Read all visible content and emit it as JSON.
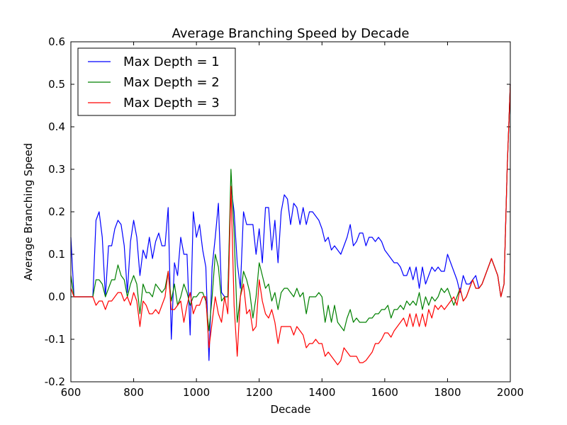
{
  "chart_data": {
    "type": "line",
    "title": "Average Branching Speed by Decade",
    "x_label": "Decade",
    "y_label": "Average Branching Speed",
    "x": [
      600,
      610,
      620,
      630,
      640,
      650,
      660,
      670,
      680,
      690,
      700,
      710,
      720,
      730,
      740,
      750,
      760,
      770,
      780,
      790,
      800,
      810,
      820,
      830,
      840,
      850,
      860,
      870,
      880,
      890,
      900,
      910,
      920,
      930,
      940,
      950,
      960,
      970,
      980,
      990,
      1000,
      1010,
      1020,
      1030,
      1040,
      1050,
      1060,
      1070,
      1080,
      1090,
      1100,
      1110,
      1120,
      1130,
      1140,
      1150,
      1160,
      1170,
      1180,
      1190,
      1200,
      1210,
      1220,
      1230,
      1240,
      1250,
      1260,
      1270,
      1280,
      1290,
      1300,
      1310,
      1320,
      1330,
      1340,
      1350,
      1360,
      1370,
      1380,
      1390,
      1400,
      1410,
      1420,
      1430,
      1440,
      1450,
      1460,
      1470,
      1480,
      1490,
      1500,
      1510,
      1520,
      1530,
      1540,
      1550,
      1560,
      1570,
      1580,
      1590,
      1600,
      1610,
      1620,
      1630,
      1640,
      1650,
      1660,
      1670,
      1680,
      1690,
      1700,
      1710,
      1720,
      1730,
      1740,
      1750,
      1760,
      1770,
      1780,
      1790,
      1800,
      1810,
      1820,
      1830,
      1840,
      1850,
      1860,
      1870,
      1880,
      1890,
      1900,
      1910,
      1920,
      1930,
      1940,
      1950,
      1960,
      1970,
      1980,
      1990,
      2000
    ],
    "series": [
      {
        "name": "Max Depth = 1",
        "color": "#0000ff",
        "values": [
          0.14,
          0,
          0,
          0,
          0,
          0,
          0,
          0,
          0.18,
          0.2,
          0.14,
          0,
          0.12,
          0.12,
          0.16,
          0.18,
          0.17,
          0.12,
          0.01,
          0.13,
          0.18,
          0.14,
          0.05,
          0.11,
          0.09,
          0.14,
          0.09,
          0.13,
          0.15,
          0.12,
          0.12,
          0.21,
          -0.1,
          0.08,
          0.05,
          0.14,
          0.1,
          0.1,
          -0.09,
          0.2,
          0.14,
          0.17,
          0.11,
          0.07,
          -0.15,
          0.07,
          0.14,
          0.22,
          0.01,
          0,
          0,
          0.26,
          0.2,
          0.08,
          0.02,
          0.2,
          0.17,
          0.17,
          0.17,
          0.1,
          0.16,
          0.08,
          0.21,
          0.21,
          0.11,
          0.18,
          0.08,
          0.2,
          0.24,
          0.23,
          0.17,
          0.22,
          0.21,
          0.17,
          0.21,
          0.17,
          0.2,
          0.2,
          0.19,
          0.18,
          0.16,
          0.13,
          0.14,
          0.11,
          0.12,
          0.11,
          0.1,
          0.12,
          0.14,
          0.17,
          0.12,
          0.13,
          0.15,
          0.15,
          0.12,
          0.14,
          0.14,
          0.13,
          0.14,
          0.13,
          0.11,
          0.1,
          0.09,
          0.08,
          0.08,
          0.07,
          0.05,
          0.05,
          0.07,
          0.04,
          0.07,
          0.02,
          0.07,
          0.03,
          0.05,
          0.07,
          0.06,
          0.07,
          0.06,
          0.06,
          0.1,
          0.08,
          0.06,
          0.04,
          0.01,
          0.05,
          0.03,
          0.03,
          0.04,
          0.05,
          0.02,
          0.03,
          0.05,
          0.07,
          0.09,
          0.07,
          0.05,
          0,
          0.03,
          0.3,
          0.5
        ]
      },
      {
        "name": "Max Depth = 2",
        "color": "#008000",
        "values": [
          0.05,
          0,
          0,
          0,
          0,
          0,
          0,
          0,
          0.04,
          0.04,
          0.03,
          0,
          0.02,
          0.04,
          0.04,
          0.075,
          0.05,
          0.04,
          0,
          0.03,
          0.05,
          0.03,
          -0.04,
          0.03,
          0.01,
          0.01,
          0,
          0.03,
          0.02,
          0.01,
          0.02,
          0.06,
          -0.01,
          0.03,
          -0.02,
          0,
          0.03,
          0.01,
          -0.02,
          0,
          0,
          0.01,
          0.01,
          -0.01,
          -0.08,
          0,
          0.1,
          0.07,
          -0.01,
          0,
          0,
          0.3,
          0.15,
          -0.06,
          0,
          0.06,
          0.04,
          0.01,
          -0.05,
          0,
          0.08,
          0.05,
          0.02,
          0.03,
          -0.01,
          0.01,
          -0.03,
          0.01,
          0.02,
          0.02,
          0.01,
          0,
          0.02,
          0,
          0.01,
          -0.04,
          0,
          0,
          0,
          0.01,
          0,
          -0.06,
          -0.02,
          -0.06,
          -0.02,
          -0.06,
          -0.07,
          -0.08,
          -0.05,
          -0.03,
          -0.06,
          -0.05,
          -0.06,
          -0.06,
          -0.06,
          -0.05,
          -0.05,
          -0.04,
          -0.04,
          -0.03,
          -0.03,
          -0.02,
          -0.05,
          -0.03,
          -0.03,
          -0.02,
          -0.03,
          -0.01,
          -0.02,
          -0.01,
          -0.02,
          0.01,
          -0.03,
          0,
          -0.02,
          0,
          -0.01,
          0,
          0.02,
          0.01,
          0.02,
          0,
          -0.02,
          0,
          0.02,
          -0.01,
          0,
          0.02,
          0.04,
          0.02,
          0.02,
          0.03,
          0.05,
          0.07,
          0.09,
          0.07,
          0.05,
          0,
          0.03,
          0.3,
          0.5
        ]
      },
      {
        "name": "Max Depth = 3",
        "color": "#ff0000",
        "values": [
          0.02,
          0,
          0,
          0,
          0,
          0,
          0,
          0,
          -0.02,
          -0.01,
          -0.01,
          -0.03,
          -0.01,
          -0.01,
          0,
          0.01,
          0.01,
          -0.01,
          0,
          -0.02,
          0.01,
          -0.01,
          -0.07,
          -0.01,
          -0.02,
          -0.04,
          -0.04,
          -0.03,
          -0.04,
          -0.02,
          0,
          0.06,
          -0.03,
          -0.03,
          -0.02,
          -0.01,
          -0.06,
          -0.02,
          0.01,
          -0.04,
          -0.02,
          -0.02,
          0,
          0,
          -0.12,
          -0.06,
          0,
          -0.04,
          -0.06,
          0,
          -0.04,
          0.26,
          -0.02,
          -0.14,
          0,
          0.03,
          -0.04,
          -0.03,
          -0.08,
          -0.07,
          0.04,
          -0.01,
          -0.04,
          -0.05,
          -0.03,
          -0.06,
          -0.11,
          -0.07,
          -0.07,
          -0.07,
          -0.07,
          -0.09,
          -0.07,
          -0.08,
          -0.09,
          -0.12,
          -0.11,
          -0.11,
          -0.1,
          -0.11,
          -0.11,
          -0.14,
          -0.13,
          -0.14,
          -0.15,
          -0.16,
          -0.15,
          -0.12,
          -0.13,
          -0.14,
          -0.14,
          -0.14,
          -0.155,
          -0.155,
          -0.15,
          -0.14,
          -0.13,
          -0.11,
          -0.11,
          -0.1,
          -0.085,
          -0.085,
          -0.095,
          -0.08,
          -0.07,
          -0.06,
          -0.05,
          -0.07,
          -0.04,
          -0.07,
          -0.04,
          -0.07,
          -0.04,
          -0.07,
          -0.03,
          -0.05,
          -0.02,
          -0.03,
          -0.02,
          -0.03,
          -0.02,
          -0.01,
          0,
          -0.02,
          0.02,
          -0.01,
          0,
          0.02,
          0.04,
          0.02,
          0.02,
          0.03,
          0.05,
          0.07,
          0.09,
          0.07,
          0.05,
          0,
          0.03,
          0.3,
          0.5
        ]
      }
    ],
    "xlim": [
      600,
      2000
    ],
    "xticks": [
      600,
      800,
      1000,
      1200,
      1400,
      1600,
      1800,
      2000
    ],
    "ylim": [
      -0.2,
      0.6
    ],
    "yticks": [
      -0.2,
      -0.1,
      {
        "value": 0,
        "label": "0.0"
      },
      0.1,
      0.2,
      0.3,
      0.4,
      0.5,
      0.6
    ],
    "grid": false,
    "legend": "upper left"
  }
}
